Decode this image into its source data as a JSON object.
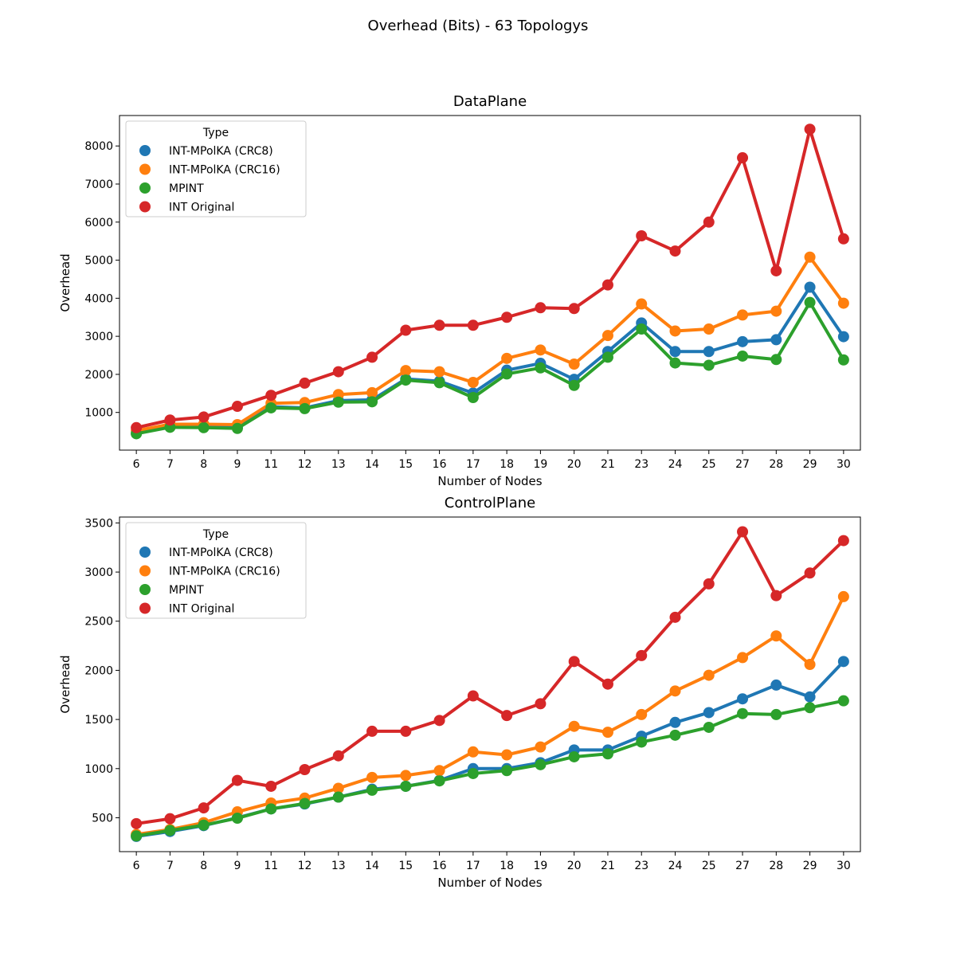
{
  "figure": {
    "suptitle": "Overhead (Bits) - 63 Topologys"
  },
  "colors": {
    "INT-MPolKA (CRC8)": "#1f77b4",
    "INT-MPolKA (CRC16)": "#ff7f0e",
    "MPINT": "#2ca02c",
    "INT Original": "#d62728"
  },
  "chart_data": [
    {
      "type": "line",
      "title": "DataPlane",
      "xlabel": "Number of Nodes",
      "ylabel": "Overhead",
      "categories": [
        "6",
        "7",
        "8",
        "9",
        "11",
        "12",
        "13",
        "14",
        "15",
        "16",
        "17",
        "18",
        "19",
        "20",
        "21",
        "23",
        "24",
        "25",
        "27",
        "28",
        "29",
        "30"
      ],
      "ylim": [
        10,
        8800
      ],
      "yticks": [
        1000,
        2000,
        3000,
        4000,
        5000,
        6000,
        7000,
        8000
      ],
      "legend": {
        "title": "Type",
        "placement": "upper-left"
      },
      "series": [
        {
          "name": "INT-MPolKA (CRC8)",
          "values": [
            450,
            630,
            610,
            610,
            1150,
            1120,
            1310,
            1330,
            1880,
            1820,
            1510,
            2110,
            2290,
            1870,
            2600,
            3350,
            2600,
            2600,
            2860,
            2910,
            4290,
            2990
          ]
        },
        {
          "name": "INT-MPolKA (CRC16)",
          "values": [
            520,
            690,
            690,
            680,
            1240,
            1260,
            1470,
            1520,
            2100,
            2070,
            1790,
            2420,
            2640,
            2270,
            3020,
            3850,
            3140,
            3190,
            3560,
            3660,
            5080,
            3870
          ]
        },
        {
          "name": "MPINT",
          "values": [
            440,
            610,
            600,
            580,
            1120,
            1100,
            1270,
            1280,
            1850,
            1780,
            1390,
            2010,
            2170,
            1710,
            2450,
            3190,
            2300,
            2240,
            2480,
            2390,
            3890,
            2380
          ]
        },
        {
          "name": "INT Original",
          "values": [
            600,
            800,
            880,
            1160,
            1450,
            1770,
            2070,
            2450,
            3160,
            3290,
            3290,
            3500,
            3750,
            3730,
            4350,
            5640,
            5240,
            6000,
            7690,
            4720,
            8440,
            5560
          ]
        }
      ]
    },
    {
      "type": "line",
      "title": "ControlPlane",
      "xlabel": "Number of Nodes",
      "ylabel": "Overhead",
      "categories": [
        "6",
        "7",
        "8",
        "9",
        "11",
        "12",
        "13",
        "14",
        "15",
        "16",
        "17",
        "18",
        "19",
        "20",
        "21",
        "23",
        "24",
        "25",
        "27",
        "28",
        "29",
        "30"
      ],
      "ylim": [
        155,
        3560
      ],
      "yticks": [
        500,
        1000,
        1500,
        2000,
        2500,
        3000,
        3500
      ],
      "legend": {
        "title": "Type",
        "placement": "upper-left"
      },
      "series": [
        {
          "name": "INT-MPolKA (CRC8)",
          "values": [
            310,
            360,
            420,
            500,
            590,
            640,
            710,
            790,
            820,
            880,
            1000,
            1000,
            1060,
            1190,
            1190,
            1330,
            1470,
            1570,
            1710,
            1850,
            1730,
            2090
          ]
        },
        {
          "name": "INT-MPolKA (CRC16)",
          "values": [
            330,
            380,
            450,
            560,
            650,
            700,
            800,
            910,
            930,
            980,
            1170,
            1140,
            1220,
            1430,
            1370,
            1550,
            1790,
            1950,
            2130,
            2350,
            2060,
            2750
          ]
        },
        {
          "name": "MPINT",
          "values": [
            315,
            370,
            425,
            495,
            590,
            645,
            710,
            780,
            820,
            875,
            950,
            980,
            1040,
            1120,
            1150,
            1270,
            1340,
            1420,
            1560,
            1550,
            1620,
            1690
          ]
        },
        {
          "name": "INT Original",
          "values": [
            440,
            490,
            600,
            880,
            820,
            990,
            1130,
            1380,
            1380,
            1490,
            1740,
            1540,
            1660,
            2090,
            1860,
            2150,
            2540,
            2880,
            3410,
            2760,
            2990,
            3320
          ]
        }
      ]
    }
  ]
}
